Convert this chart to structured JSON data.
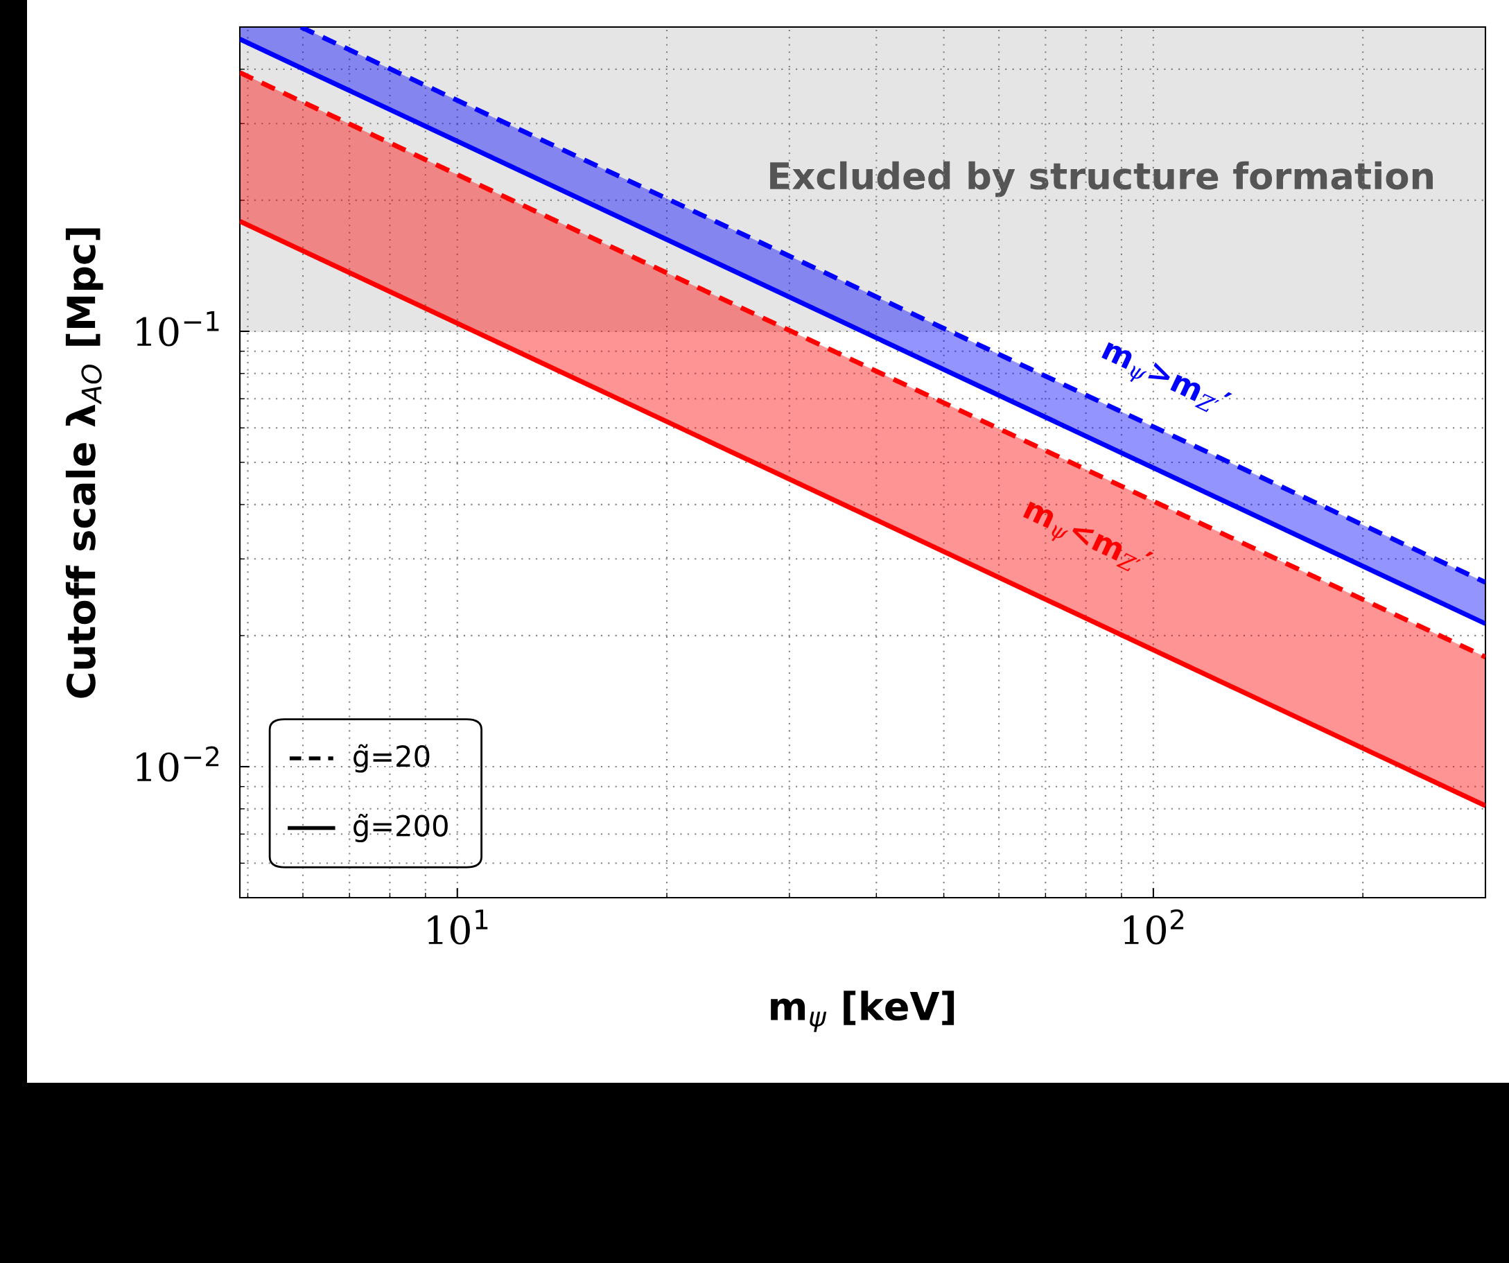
{
  "chart_data": {
    "type": "line",
    "xlabel": "m$_{ψ}$ [keV]",
    "ylabel": "Cutoff scale λ$_{AO}$ [Mpc]",
    "log": "xy",
    "xlim": [
      4.87,
      300
    ],
    "ylim": [
      0.005,
      0.5
    ],
    "xticks": [
      {
        "value": 10,
        "label": "10$^{1}$"
      },
      {
        "value": 100,
        "label": "10$^{2}$"
      }
    ],
    "yticks": [
      {
        "value": 0.01,
        "label": "10$^{−2}$"
      },
      {
        "value": 0.1,
        "label": "10$^{−1}$"
      }
    ],
    "grid": true,
    "series": [
      {
        "color": "#0000ff",
        "line_style": "dashed",
        "x": [
          5.96,
          300
        ],
        "values": [
          0.5,
          0.0265
        ]
      },
      {
        "color": "#0000ff",
        "line_style": "solid",
        "x": [
          4.87,
          5.96,
          300
        ],
        "values": [
          0.469,
          0.403,
          0.0213
        ],
        "lower": [
          0.469,
          0.403,
          0.0213
        ],
        "upper": [
          0.5,
          0.5,
          0.0265
        ]
      },
      {
        "color": "#ff0000",
        "line_style": "dashed",
        "x": [
          4.87,
          300
        ],
        "values": [
          0.393,
          0.01786
        ]
      },
      {
        "color": "#ff0000",
        "line_style": "solid",
        "x": [
          4.87,
          300
        ],
        "values": [
          0.179,
          0.00813
        ],
        "lower": [
          0.179,
          0.00813
        ],
        "upper": [
          0.393,
          0.01786
        ]
      }
    ],
    "bands": [
      {
        "axis": "y",
        "from": 0.1,
        "to": 0.5,
        "label": "Excluded by structure formation",
        "color": "#e5e5e5"
      }
    ],
    "annotations": [
      "m$_{ψ}$>m$_{Z′}$′",
      "m$_{ψ}$<m$_{Z′}$′",
      "g̃=20",
      "g̃=200"
    ]
  }
}
